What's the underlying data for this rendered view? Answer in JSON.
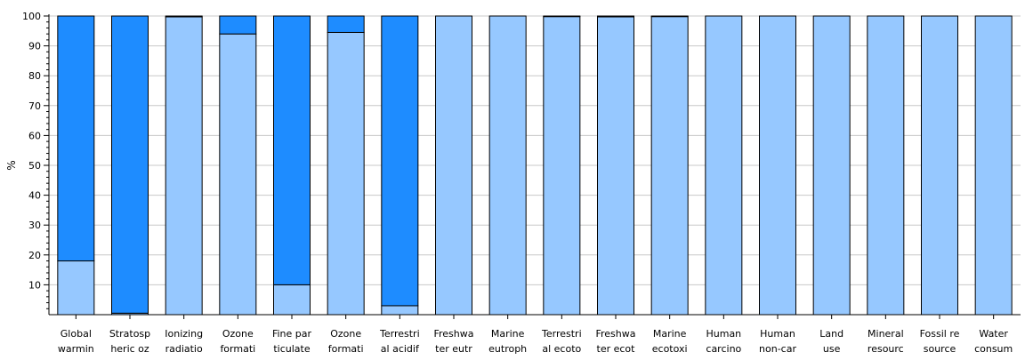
{
  "chart_data": {
    "type": "bar",
    "stacked": true,
    "ylabel": "%",
    "ylim": [
      0,
      100
    ],
    "yticks": [
      10,
      20,
      30,
      40,
      50,
      60,
      70,
      80,
      90,
      100
    ],
    "grid": true,
    "categories": [
      [
        "Global",
        "warmin"
      ],
      [
        "Stratosp",
        "heric oz"
      ],
      [
        "Ionizing",
        "radiatio"
      ],
      [
        "Ozone",
        "formati"
      ],
      [
        "Fine par",
        "ticulate"
      ],
      [
        "Ozone",
        "formati"
      ],
      [
        "Terrestri",
        "al acidif"
      ],
      [
        "Freshwa",
        "ter eutr"
      ],
      [
        "Marine",
        "eutroph"
      ],
      [
        "Terrestri",
        "al ecoto"
      ],
      [
        "Freshwa",
        "ter ecot"
      ],
      [
        "Marine",
        "ecotoxi"
      ],
      [
        "Human",
        "carcino"
      ],
      [
        "Human",
        "non-car"
      ],
      [
        "Land",
        "use"
      ],
      [
        "Mineral",
        "resourc"
      ],
      [
        "Fossil re",
        "source"
      ],
      [
        "Water",
        "consum"
      ]
    ],
    "series": [
      {
        "color": "#96c8ff",
        "values": [
          18,
          0.5,
          99.7,
          94,
          10,
          94.5,
          3,
          100,
          100,
          99.8,
          99.7,
          99.8,
          100,
          100,
          100,
          100,
          100,
          100
        ]
      },
      {
        "color": "#1e8cff",
        "values": [
          82,
          99.5,
          0.3,
          6,
          90,
          5.5,
          97,
          0,
          0,
          0.2,
          0.3,
          0.2,
          0,
          0,
          0,
          0,
          0,
          0
        ]
      }
    ]
  }
}
